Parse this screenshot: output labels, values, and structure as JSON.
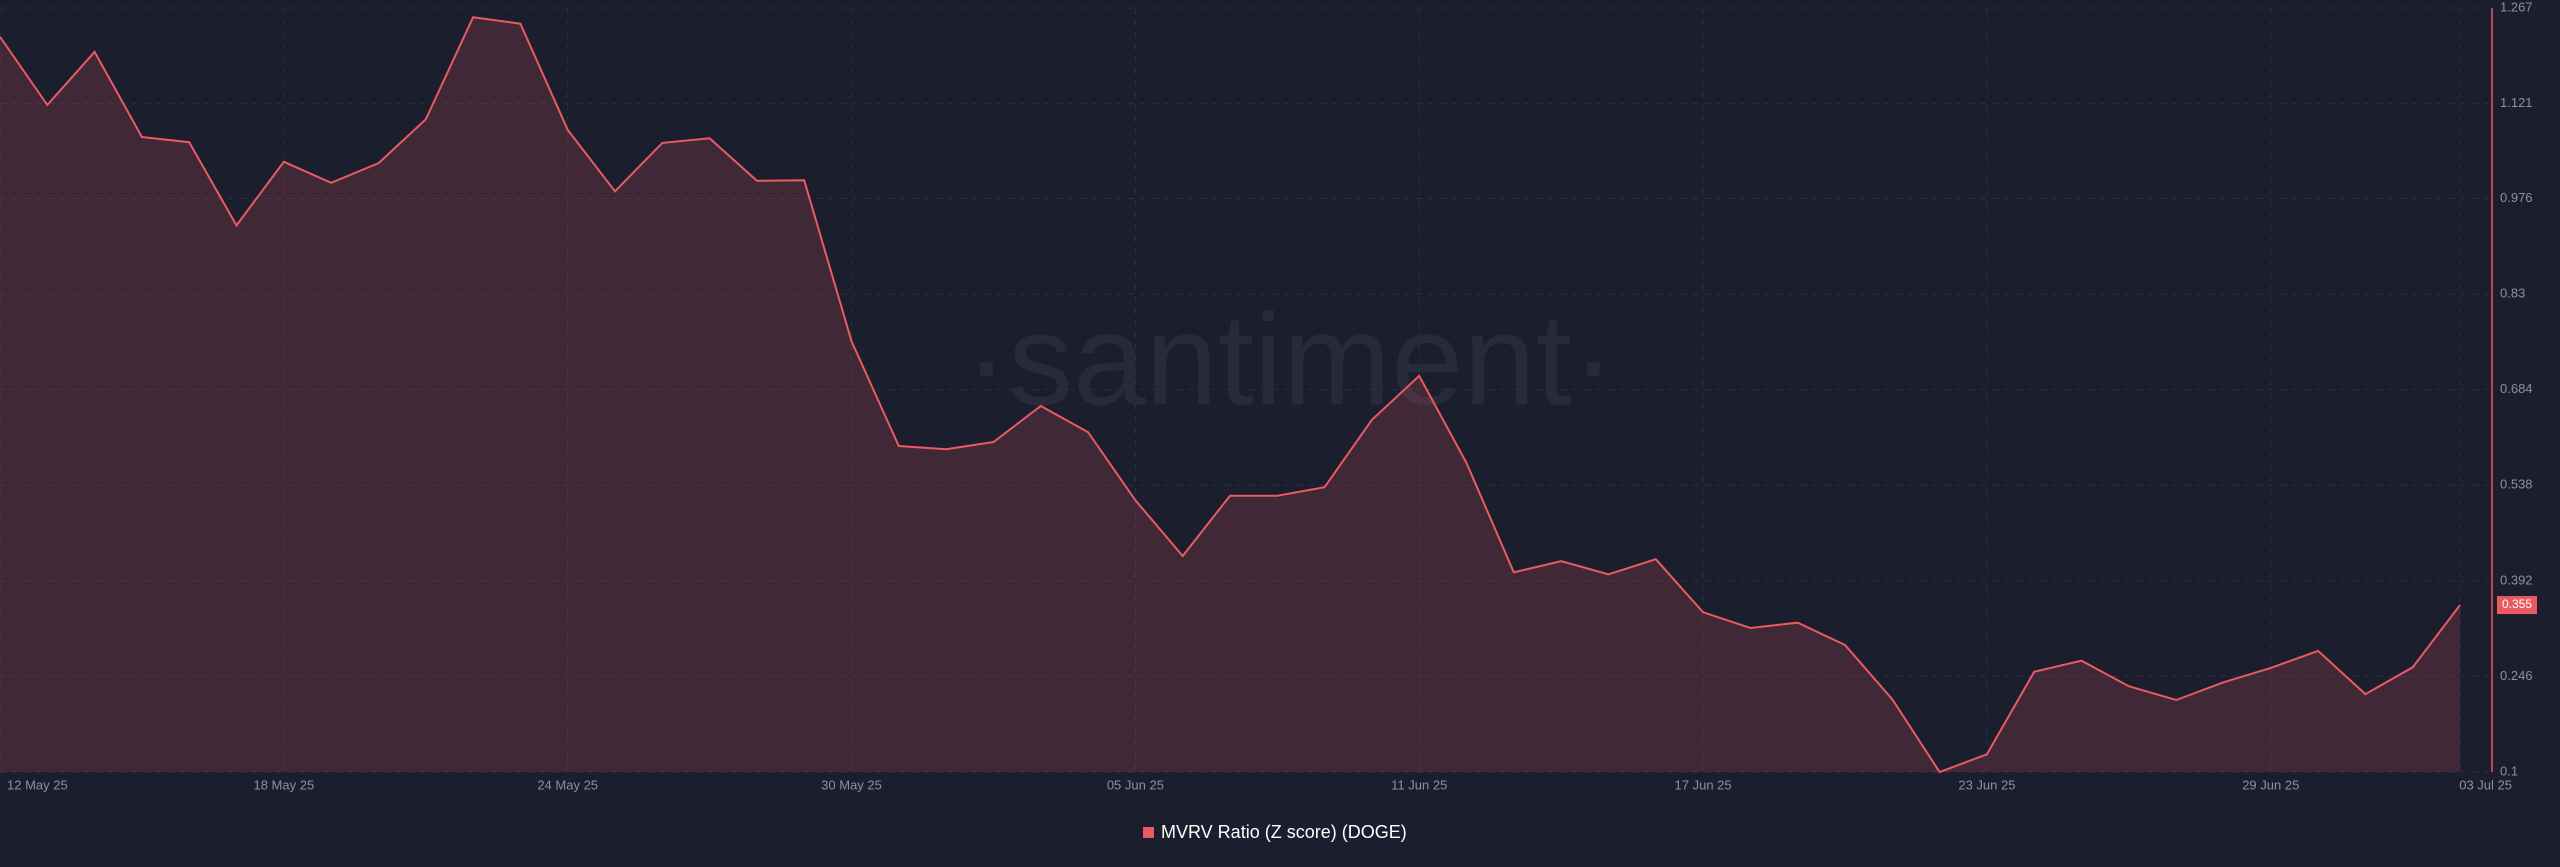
{
  "chart_data": {
    "type": "line",
    "watermark": "·santiment·",
    "categories": [
      "12 May 25",
      null,
      null,
      null,
      null,
      null,
      "18 May 25",
      null,
      null,
      null,
      null,
      null,
      "24 May 25",
      null,
      null,
      null,
      null,
      null,
      "30 May 25",
      null,
      null,
      null,
      null,
      null,
      "05 Jun 25",
      null,
      null,
      null,
      null,
      null,
      "11 Jun 25",
      null,
      null,
      null,
      null,
      null,
      "17 Jun 25",
      null,
      null,
      null,
      null,
      null,
      "23 Jun 25",
      null,
      null,
      null,
      null,
      null,
      "29 Jun 25",
      null,
      null,
      null,
      "03 Jul 25"
    ],
    "series": [
      {
        "name": "MVRV Ratio (Z score) (DOGE)",
        "color": "#ea5a62",
        "values": [
          1.223,
          1.119,
          1.2,
          1.07,
          1.062,
          0.935,
          1.032,
          1.0,
          1.03,
          1.097,
          1.253,
          1.243,
          1.081,
          0.987,
          1.061,
          1.068,
          1.003,
          1.004,
          0.758,
          0.598,
          0.593,
          0.604,
          0.659,
          0.619,
          0.515,
          0.43,
          0.522,
          0.522,
          0.535,
          0.638,
          0.705,
          0.572,
          0.405,
          0.422,
          0.402,
          0.425,
          0.344,
          0.32,
          0.328,
          0.294,
          0.211,
          0.1,
          0.127,
          0.253,
          0.27,
          0.231,
          0.21,
          0.237,
          0.259,
          0.285,
          0.219,
          0.26,
          0.355
        ]
      }
    ],
    "ylim": [
      0.1,
      1.267
    ],
    "yticks": [
      0.1,
      0.246,
      0.392,
      0.538,
      0.684,
      0.83,
      0.976,
      1.121,
      1.267
    ],
    "grid": true
  }
}
